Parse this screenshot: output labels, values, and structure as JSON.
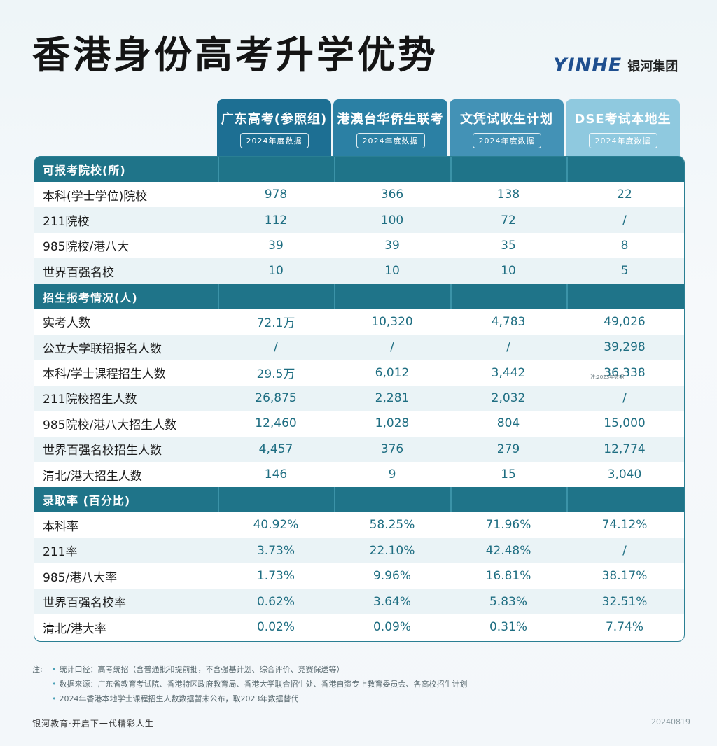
{
  "title": "香港身份高考升学优势",
  "logo": {
    "mark": "YINHE",
    "text": "银河集团"
  },
  "columns": [
    {
      "name": "广东高考(参照组)",
      "sub": "2024年度数据"
    },
    {
      "name": "港澳台华侨生联考",
      "sub": "2024年度数据"
    },
    {
      "name": "文凭试收生计划",
      "sub": "2024年度数据"
    },
    {
      "name": "DSE考试本地生",
      "sub": "2024年度数据"
    }
  ],
  "sections": [
    {
      "title": "可报考院校(所)",
      "rows": [
        {
          "label": "本科(学士学位)院校",
          "values": [
            "978",
            "366",
            "138",
            "22"
          ]
        },
        {
          "label": "211院校",
          "values": [
            "112",
            "100",
            "72",
            "/"
          ]
        },
        {
          "label": "985院校/港八大",
          "values": [
            "39",
            "39",
            "35",
            "8"
          ]
        },
        {
          "label": "世界百强名校",
          "values": [
            "10",
            "10",
            "10",
            "5"
          ]
        }
      ]
    },
    {
      "title": "招生报考情况(人)",
      "rows": [
        {
          "label": "实考人数",
          "values": [
            "72.1万",
            "10,320",
            "4,783",
            "49,026"
          ]
        },
        {
          "label": "公立大学联招报名人数",
          "values": [
            "/",
            "/",
            "/",
            "39,298"
          ]
        },
        {
          "label": "本科/学士课程招生人数",
          "values": [
            "29.5万",
            "6,012",
            "3,442",
            "36,338"
          ],
          "note": "注:2023年数据"
        },
        {
          "label": "211院校招生人数",
          "values": [
            "26,875",
            "2,281",
            "2,032",
            "/"
          ]
        },
        {
          "label": "985院校/港八大招生人数",
          "values": [
            "12,460",
            "1,028",
            "804",
            "15,000"
          ]
        },
        {
          "label": "世界百强名校招生人数",
          "values": [
            "4,457",
            "376",
            "279",
            "12,774"
          ]
        },
        {
          "label": "清北/港大招生人数",
          "values": [
            "146",
            "9",
            "15",
            "3,040"
          ]
        }
      ]
    },
    {
      "title": "录取率 (百分比)",
      "rows": [
        {
          "label": "本科率",
          "values": [
            "40.92%",
            "58.25%",
            "71.96%",
            "74.12%"
          ]
        },
        {
          "label": "211率",
          "values": [
            "3.73%",
            "22.10%",
            "42.48%",
            "/"
          ]
        },
        {
          "label": "985/港八大率",
          "values": [
            "1.73%",
            "9.96%",
            "16.81%",
            "38.17%"
          ]
        },
        {
          "label": "世界百强名校率",
          "values": [
            "0.62%",
            "3.64%",
            "5.83%",
            "32.51%"
          ]
        },
        {
          "label": "清北/港大率",
          "values": [
            "0.02%",
            "0.09%",
            "0.31%",
            "7.74%"
          ]
        }
      ]
    }
  ],
  "notes": {
    "lead": "注:",
    "items": [
      "统计口径：高考统招（含普通批和提前批，不含强基计划、综合评价、竞赛保送等）",
      "数据来源：广东省教育考试院、香港特区政府教育局、香港大学联合招生处、香港自资专上教育委员会、各高校招生计划",
      "2024年香港本地学士课程招生人数数据暂未公布，取2023年数据替代"
    ]
  },
  "footer": {
    "left": "银河教育·开启下一代精彩人生",
    "right": "20240819"
  }
}
